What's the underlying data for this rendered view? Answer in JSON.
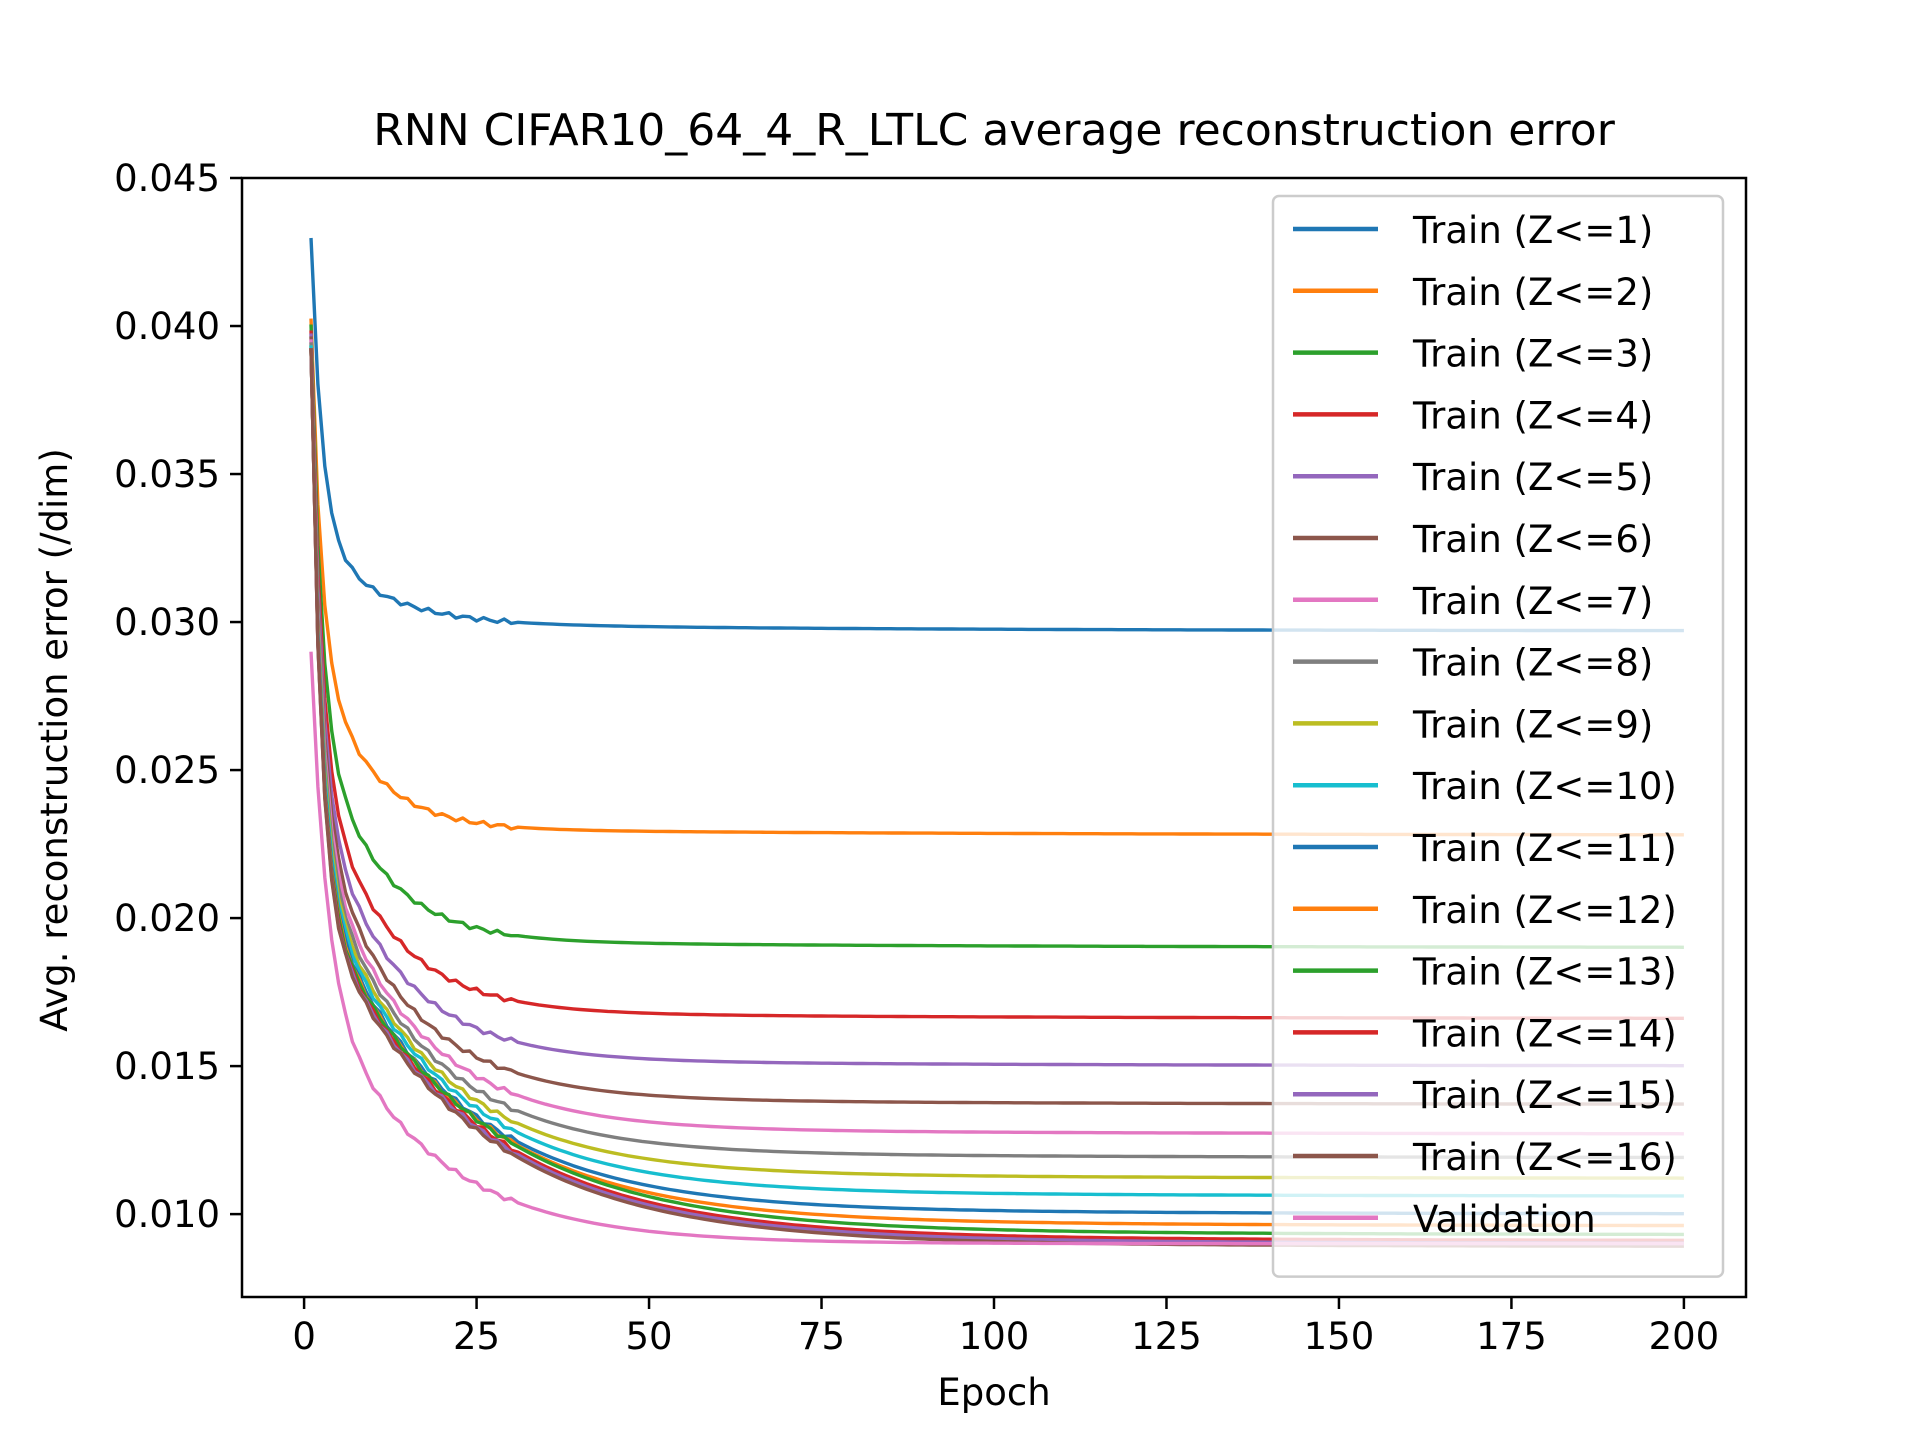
{
  "chart_data": {
    "type": "line",
    "title": "RNN CIFAR10_64_4_R_LTLC average reconstruction error",
    "xlabel": "Epoch",
    "ylabel": "Avg. reconstruction error (/dim)",
    "xlim": [
      -9,
      209
    ],
    "ylim": [
      0.0072,
      0.045
    ],
    "xticks": [
      0,
      25,
      50,
      75,
      100,
      125,
      150,
      175,
      200
    ],
    "yticks": [
      0.01,
      0.015,
      0.02,
      0.025,
      0.03,
      0.035,
      0.04,
      0.045
    ],
    "ytick_labels": [
      "0.010",
      "0.015",
      "0.020",
      "0.025",
      "0.030",
      "0.035",
      "0.040",
      "0.045"
    ],
    "grid": false,
    "legend_position": "upper right",
    "series": [
      {
        "name": "Train (Z<=1)",
        "color": "#1f77b4",
        "start": 0.0435,
        "final": 0.0297
      },
      {
        "name": "Train (Z<=2)",
        "color": "#ff7f0e",
        "start": 0.04,
        "final": 0.0228
      },
      {
        "name": "Train (Z<=3)",
        "color": "#2ca02c",
        "start": 0.0398,
        "final": 0.019
      },
      {
        "name": "Train (Z<=4)",
        "color": "#d62728",
        "start": 0.0396,
        "final": 0.0166
      },
      {
        "name": "Train (Z<=5)",
        "color": "#9467bd",
        "start": 0.0395,
        "final": 0.015
      },
      {
        "name": "Train (Z<=6)",
        "color": "#8c564b",
        "start": 0.0394,
        "final": 0.0137
      },
      {
        "name": "Train (Z<=7)",
        "color": "#e377c2",
        "start": 0.0393,
        "final": 0.0127
      },
      {
        "name": "Train (Z<=8)",
        "color": "#7f7f7f",
        "start": 0.0392,
        "final": 0.0119
      },
      {
        "name": "Train (Z<=9)",
        "color": "#bcbd22",
        "start": 0.0391,
        "final": 0.0112
      },
      {
        "name": "Train (Z<=10)",
        "color": "#17becf",
        "start": 0.0391,
        "final": 0.0106
      },
      {
        "name": "Train (Z<=11)",
        "color": "#1f77b4",
        "start": 0.039,
        "final": 0.01
      },
      {
        "name": "Train (Z<=12)",
        "color": "#ff7f0e",
        "start": 0.039,
        "final": 0.0096
      },
      {
        "name": "Train (Z<=13)",
        "color": "#2ca02c",
        "start": 0.039,
        "final": 0.0093
      },
      {
        "name": "Train (Z<=14)",
        "color": "#d62728",
        "start": 0.039,
        "final": 0.0091
      },
      {
        "name": "Train (Z<=15)",
        "color": "#9467bd",
        "start": 0.039,
        "final": 0.009
      },
      {
        "name": "Train (Z<=16)",
        "color": "#8c564b",
        "start": 0.039,
        "final": 0.0089
      },
      {
        "name": "Validation",
        "color": "#e377c2",
        "start": 0.029,
        "final": 0.009
      }
    ],
    "epochs": [
      1,
      200
    ]
  }
}
